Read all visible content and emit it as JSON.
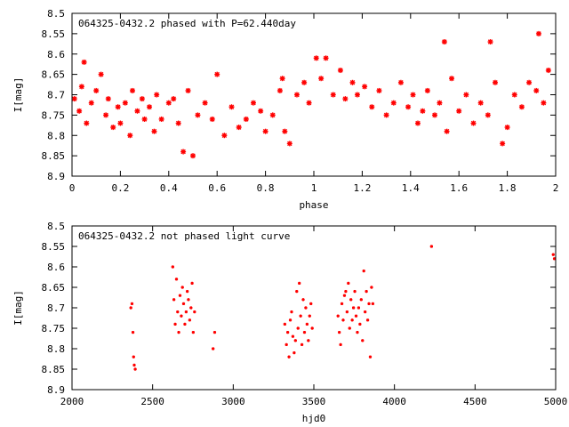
{
  "chart_data": [
    {
      "type": "scatter",
      "title": "064325-0432.2 phased with P=62.440day",
      "xlabel": "phase",
      "ylabel": "I[mag]",
      "xlim": [
        0,
        2
      ],
      "ylim": [
        8.5,
        8.9
      ],
      "y_inverted": true,
      "marker_color": "#ff0000",
      "x_ticks": [
        "0",
        "0.2",
        "0.4",
        "0.6",
        "0.8",
        "1",
        "1.2",
        "1.4",
        "1.6",
        "1.8",
        "2"
      ],
      "y_ticks": [
        "8.5",
        "8.55",
        "8.6",
        "8.65",
        "8.7",
        "8.75",
        "8.8",
        "8.85",
        "8.9"
      ],
      "series": [
        {
          "x": [
            0.01,
            0.03,
            0.04,
            0.05,
            0.06,
            0.08,
            0.1,
            0.12,
            0.14,
            0.15,
            0.17,
            0.19,
            0.2,
            0.22,
            0.24,
            0.25,
            0.27,
            0.29,
            0.3,
            0.32,
            0.34,
            0.35,
            0.37,
            0.4,
            0.42,
            0.44,
            0.46,
            0.48,
            0.5,
            0.52,
            0.55,
            0.58,
            0.6,
            0.63,
            0.66,
            0.69,
            0.72,
            0.75,
            0.78,
            0.8,
            0.83,
            0.86,
            0.87,
            0.88,
            0.9,
            0.93,
            0.96,
            0.98,
            1.01,
            1.03,
            1.05,
            1.08,
            1.11,
            1.13,
            1.16,
            1.18,
            1.21,
            1.24,
            1.27,
            1.3,
            1.33,
            1.36,
            1.39,
            1.41,
            1.43,
            1.45,
            1.47,
            1.5,
            1.52,
            1.54,
            1.55,
            1.57,
            1.6,
            1.63,
            1.66,
            1.69,
            1.72,
            1.73,
            1.75,
            1.78,
            1.8,
            1.83,
            1.86,
            1.89,
            1.92,
            1.93,
            1.95,
            1.97
          ],
          "y": [
            8.71,
            8.74,
            8.68,
            8.62,
            8.77,
            8.72,
            8.69,
            8.65,
            8.75,
            8.71,
            8.78,
            8.73,
            8.77,
            8.72,
            8.8,
            8.69,
            8.74,
            8.71,
            8.76,
            8.73,
            8.79,
            8.7,
            8.76,
            8.72,
            8.71,
            8.77,
            8.84,
            8.69,
            8.85,
            8.75,
            8.72,
            8.76,
            8.65,
            8.8,
            8.73,
            8.78,
            8.76,
            8.72,
            8.74,
            8.79,
            8.75,
            8.69,
            8.66,
            8.79,
            8.82,
            8.7,
            8.67,
            8.72,
            8.61,
            8.66,
            8.61,
            8.7,
            8.64,
            8.71,
            8.67,
            8.7,
            8.68,
            8.73,
            8.69,
            8.75,
            8.72,
            8.67,
            8.73,
            8.7,
            8.77,
            8.74,
            8.69,
            8.75,
            8.72,
            8.57,
            8.79,
            8.66,
            8.74,
            8.7,
            8.77,
            8.72,
            8.75,
            8.57,
            8.67,
            8.82,
            8.78,
            8.7,
            8.73,
            8.67,
            8.69,
            8.55,
            8.72,
            8.64
          ]
        }
      ]
    },
    {
      "type": "scatter",
      "title": "064325-0432.2 not phased light curve",
      "xlabel": "hjd0",
      "ylabel": "I[mag]",
      "xlim": [
        2000,
        5000
      ],
      "ylim": [
        8.5,
        8.9
      ],
      "y_inverted": true,
      "marker_color": "#ff0000",
      "x_ticks": [
        "2000",
        "2500",
        "3000",
        "3500",
        "4000",
        "4500",
        "5000"
      ],
      "y_ticks": [
        "8.5",
        "8.55",
        "8.6",
        "8.65",
        "8.7",
        "8.75",
        "8.8",
        "8.85",
        "8.9"
      ],
      "series": [
        {
          "x": [
            2365,
            2372,
            2378,
            2382,
            2386,
            2392,
            2625,
            2632,
            2640,
            2648,
            2655,
            2662,
            2670,
            2678,
            2685,
            2692,
            2700,
            2708,
            2715,
            2722,
            2730,
            2738,
            2745,
            2752,
            2760,
            2875,
            2885,
            3320,
            3330,
            3338,
            3346,
            3354,
            3362,
            3370,
            3378,
            3386,
            3394,
            3402,
            3410,
            3418,
            3426,
            3434,
            3442,
            3450,
            3458,
            3466,
            3474,
            3482,
            3490,
            3650,
            3658,
            3666,
            3674,
            3682,
            3690,
            3698,
            3706,
            3714,
            3722,
            3730,
            3738,
            3746,
            3754,
            3762,
            3770,
            3778,
            3786,
            3794,
            3802,
            3810,
            3818,
            3826,
            3834,
            3842,
            3850,
            3858,
            3866,
            4230,
            4985,
            4992
          ],
          "y": [
            8.7,
            8.69,
            8.76,
            8.82,
            8.84,
            8.85,
            8.6,
            8.68,
            8.74,
            8.63,
            8.71,
            8.76,
            8.67,
            8.72,
            8.65,
            8.69,
            8.74,
            8.71,
            8.66,
            8.68,
            8.73,
            8.7,
            8.64,
            8.76,
            8.71,
            8.8,
            8.76,
            8.74,
            8.79,
            8.76,
            8.82,
            8.73,
            8.71,
            8.77,
            8.81,
            8.78,
            8.66,
            8.75,
            8.64,
            8.72,
            8.79,
            8.68,
            8.76,
            8.7,
            8.74,
            8.78,
            8.72,
            8.69,
            8.75,
            8.72,
            8.76,
            8.79,
            8.69,
            8.73,
            8.67,
            8.66,
            8.71,
            8.64,
            8.75,
            8.68,
            8.73,
            8.7,
            8.66,
            8.72,
            8.76,
            8.7,
            8.74,
            8.68,
            8.78,
            8.61,
            8.71,
            8.66,
            8.73,
            8.69,
            8.82,
            8.65,
            8.69,
            8.55,
            8.57,
            8.58
          ]
        }
      ]
    }
  ]
}
